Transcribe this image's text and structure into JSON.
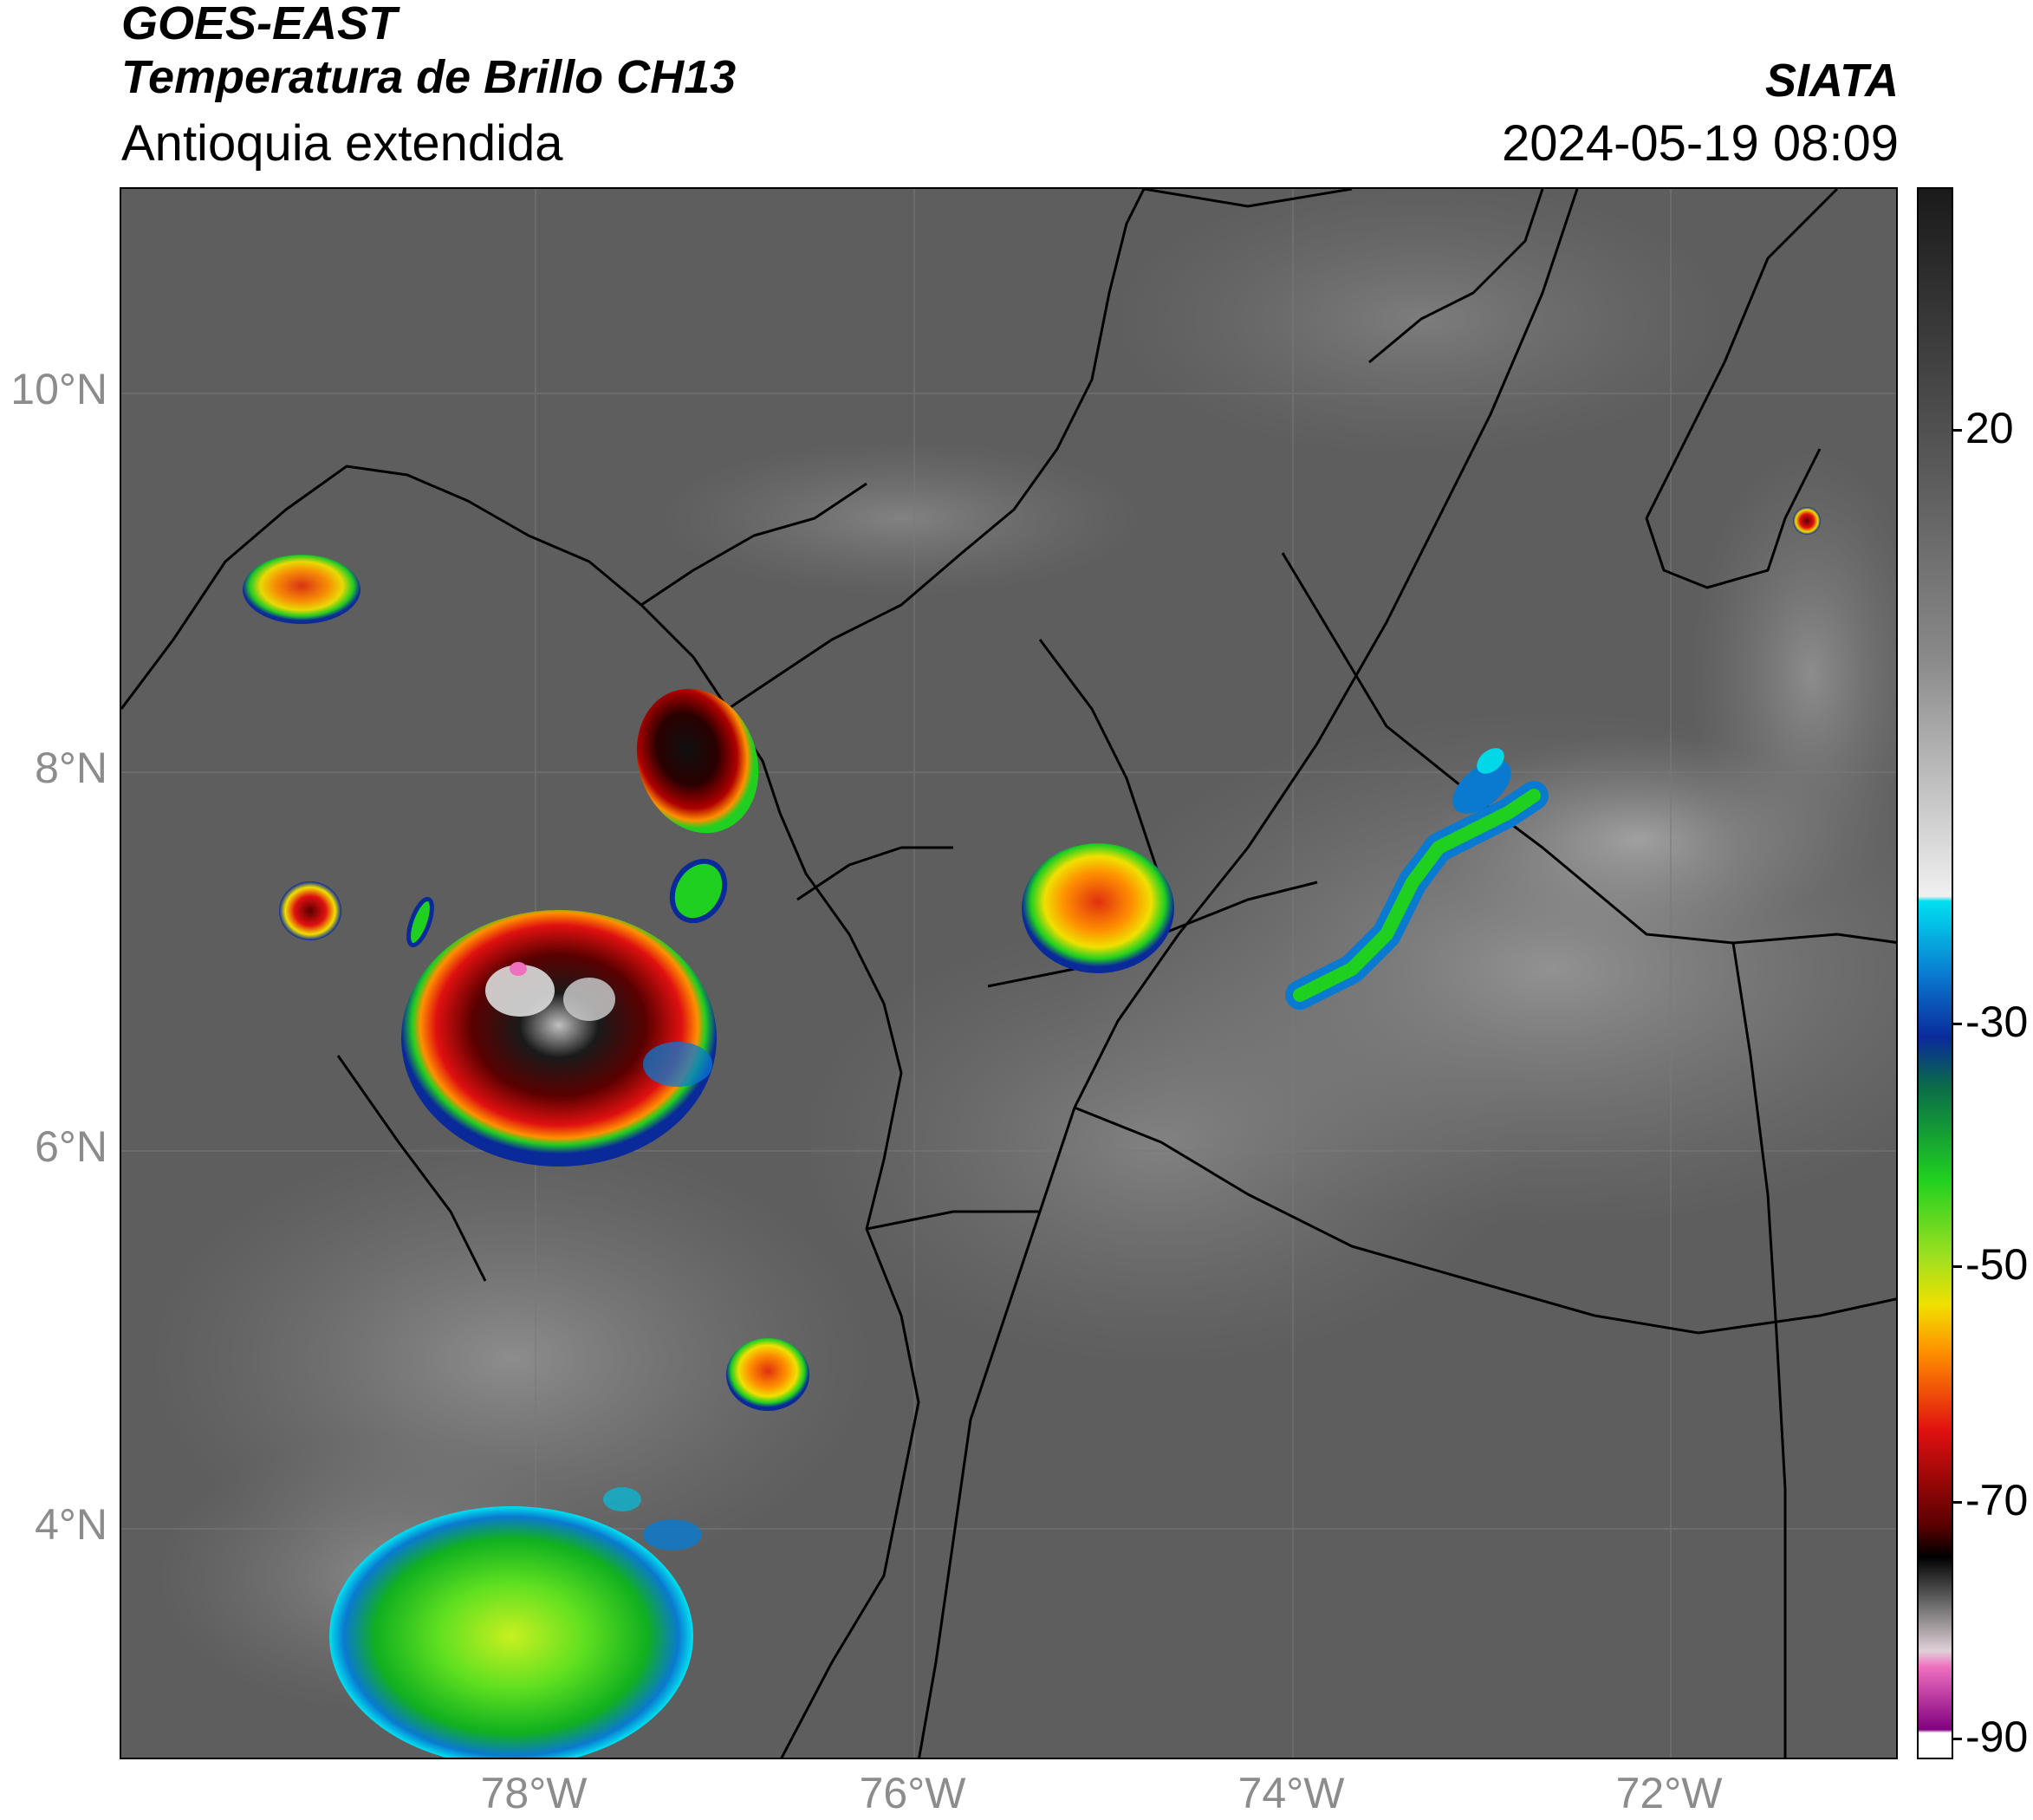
{
  "header": {
    "satellite": "GOES-EAST",
    "product": "Temperatura de Brillo CH13",
    "region": "Antioquia extendida",
    "organization": "SIATA",
    "timestamp": "2024-05-19 08:09"
  },
  "axes": {
    "lat_labels": [
      "10°N",
      "8°N",
      "6°N",
      "4°N"
    ],
    "lon_labels": [
      "78°W",
      "76°W",
      "74°W",
      "72°W"
    ]
  },
  "colorbar": {
    "tick_labels": [
      "20",
      "-30",
      "-50",
      "-70",
      "-90"
    ],
    "colors": {
      "warm_gray_dark": "#1a1a1a",
      "warm_gray_light": "#f0f0f0",
      "cyan": "#00e0f0",
      "blue": "#0a2a9a",
      "green": "#20d020",
      "yellow": "#f0e000",
      "orange": "#ff9000",
      "red": "#e01010",
      "dark_red": "#5a0000",
      "black": "#000000",
      "pink": "#f070c0",
      "purple": "#800080"
    }
  }
}
